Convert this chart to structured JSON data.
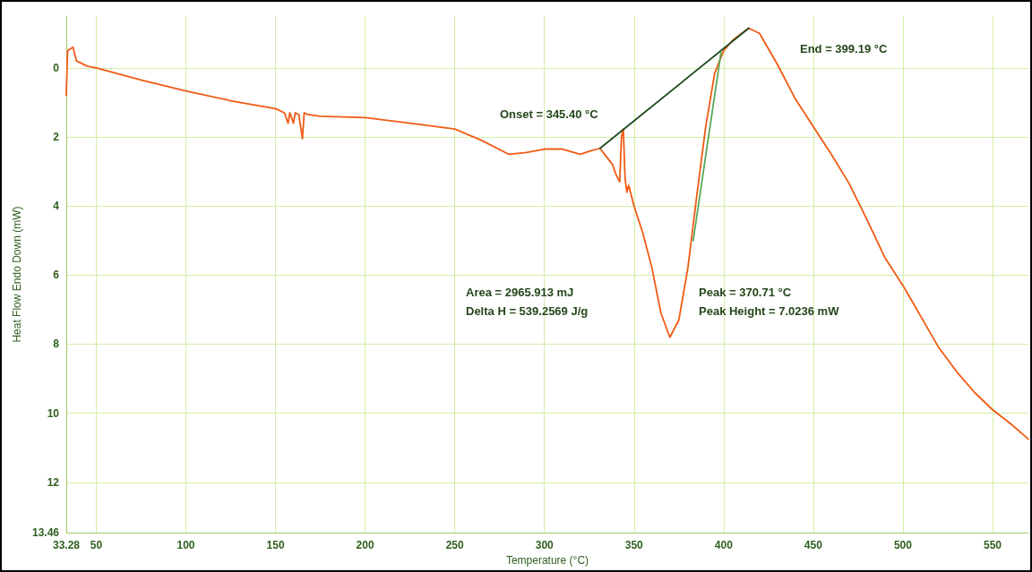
{
  "chart_data": {
    "type": "line",
    "xlabel": "Temperature (°C)",
    "ylabel": "Heat Flow Endo Down (mW)",
    "xlim": [
      33.28,
      570
    ],
    "ylim": [
      13.46,
      -1.5
    ],
    "xticks": [
      33.28,
      50,
      100,
      150,
      200,
      250,
      300,
      350,
      400,
      450,
      500,
      550
    ],
    "yticks": [
      0,
      2,
      4,
      6,
      8,
      10,
      12,
      13.46
    ],
    "grid": true,
    "marker": "none",
    "line_style": "solid",
    "series": [
      {
        "color": "#f05a14",
        "x": [
          33.28,
          34,
          37,
          39,
          45,
          50,
          75,
          100,
          125,
          150,
          155,
          157,
          158,
          160,
          161,
          163,
          165,
          166,
          168,
          175,
          200,
          225,
          250,
          265,
          280,
          290,
          300,
          310,
          320,
          326,
          331,
          335,
          338,
          340,
          342,
          343,
          344,
          345,
          346,
          347,
          350,
          355,
          360,
          365,
          370,
          375,
          380,
          385,
          390,
          395,
          400,
          405,
          410,
          414,
          420,
          430,
          440,
          450,
          460,
          470,
          480,
          490,
          500,
          510,
          520,
          530,
          540,
          550,
          560,
          570
        ],
        "values": [
          0.8,
          -0.5,
          -0.6,
          -0.2,
          -0.05,
          0,
          0.35,
          0.67,
          0.95,
          1.18,
          1.3,
          1.6,
          1.3,
          1.6,
          1.3,
          1.35,
          2.05,
          1.3,
          1.35,
          1.4,
          1.44,
          1.6,
          1.77,
          2.1,
          2.5,
          2.45,
          2.35,
          2.35,
          2.5,
          2.4,
          2.33,
          2.6,
          2.8,
          3.1,
          3.3,
          2.0,
          1.77,
          3.2,
          3.6,
          3.4,
          4.0,
          4.8,
          5.8,
          7.1,
          7.8,
          7.3,
          5.8,
          3.7,
          1.7,
          0.15,
          -0.5,
          -0.8,
          -1.0,
          -1.15,
          -1.0,
          -0.1,
          0.9,
          1.7,
          2.5,
          3.35,
          4.4,
          5.5,
          6.3,
          7.2,
          8.1,
          8.8,
          9.4,
          9.9,
          10.3,
          10.75
        ]
      },
      {
        "color": "#1f4a1f",
        "x": [
          331,
          414
        ],
        "values": [
          2.33,
          -1.15
        ]
      },
      {
        "color": "#5aa85a",
        "x": [
          383,
          398.5
        ],
        "values": [
          5.0,
          -0.45
        ]
      }
    ],
    "annotations": [
      "Onset = 345.40 °C",
      "Area = 2965.913 mJ",
      "Delta H = 539.2569 J/g",
      "Peak = 370.71 °C",
      "Peak Height = 7.0236 mW",
      "End = 399.19 °C"
    ]
  }
}
